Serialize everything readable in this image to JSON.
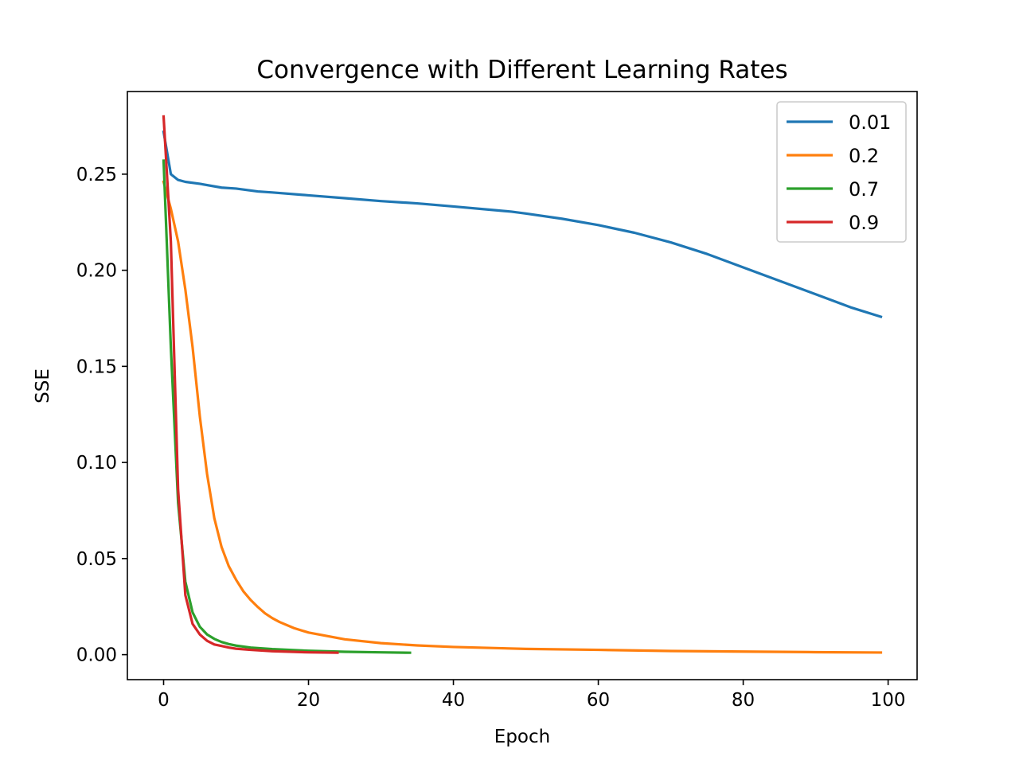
{
  "chart_data": {
    "type": "line",
    "title": "Convergence with Different Learning Rates",
    "xlabel": "Epoch",
    "ylabel": "SSE",
    "xlim": [
      -5,
      104
    ],
    "ylim": [
      -0.013,
      0.293
    ],
    "xticks": [
      0,
      20,
      40,
      60,
      80,
      100
    ],
    "xtick_labels": [
      "0",
      "20",
      "40",
      "60",
      "80",
      "100"
    ],
    "yticks": [
      0.0,
      0.05,
      0.1,
      0.15,
      0.2,
      0.25
    ],
    "ytick_labels": [
      "0.00",
      "0.05",
      "0.10",
      "0.15",
      "0.20",
      "0.25"
    ],
    "grid": false,
    "legend_position": "top-right",
    "series": [
      {
        "name": "0.01",
        "color": "#1f77b4",
        "x": [
          0,
          1,
          2,
          3,
          5,
          8,
          10,
          13,
          15,
          20,
          25,
          30,
          35,
          40,
          45,
          48,
          50,
          55,
          60,
          65,
          70,
          75,
          80,
          85,
          90,
          95,
          99
        ],
        "y": [
          0.272,
          0.25,
          0.247,
          0.246,
          0.245,
          0.243,
          0.2425,
          0.241,
          0.2405,
          0.239,
          0.2375,
          0.236,
          0.2348,
          0.2332,
          0.2315,
          0.2305,
          0.2295,
          0.2268,
          0.2235,
          0.2195,
          0.2145,
          0.2085,
          0.2015,
          0.1945,
          0.1875,
          0.1805,
          0.1758
        ]
      },
      {
        "name": "0.2",
        "color": "#ff7f0e",
        "x": [
          0,
          1,
          2,
          3,
          4,
          5,
          6,
          7,
          8,
          9,
          10,
          11,
          12,
          13,
          14,
          15,
          16,
          18,
          20,
          25,
          30,
          35,
          40,
          50,
          60,
          70,
          80,
          90,
          99
        ],
        "y": [
          0.246,
          0.232,
          0.215,
          0.19,
          0.16,
          0.124,
          0.094,
          0.071,
          0.056,
          0.046,
          0.039,
          0.033,
          0.0285,
          0.0248,
          0.0215,
          0.019,
          0.017,
          0.0138,
          0.0115,
          0.008,
          0.006,
          0.0048,
          0.004,
          0.003,
          0.0025,
          0.0019,
          0.0016,
          0.0013,
          0.0011
        ]
      },
      {
        "name": "0.7",
        "color": "#2ca02c",
        "x": [
          0,
          1,
          2,
          3,
          4,
          5,
          6,
          7,
          8,
          9,
          10,
          12,
          15,
          20,
          25,
          30,
          34
        ],
        "y": [
          0.257,
          0.16,
          0.079,
          0.038,
          0.022,
          0.0145,
          0.0105,
          0.0082,
          0.0066,
          0.0055,
          0.0047,
          0.0037,
          0.0029,
          0.002,
          0.0015,
          0.0012,
          0.001
        ]
      },
      {
        "name": "0.9",
        "color": "#d62728",
        "x": [
          0,
          1,
          2,
          3,
          4,
          5,
          6,
          7,
          8,
          9,
          10,
          12,
          15,
          20,
          24
        ],
        "y": [
          0.28,
          0.215,
          0.086,
          0.031,
          0.016,
          0.0105,
          0.0072,
          0.0053,
          0.0045,
          0.0037,
          0.0031,
          0.0025,
          0.0018,
          0.0012,
          0.001
        ]
      }
    ]
  }
}
